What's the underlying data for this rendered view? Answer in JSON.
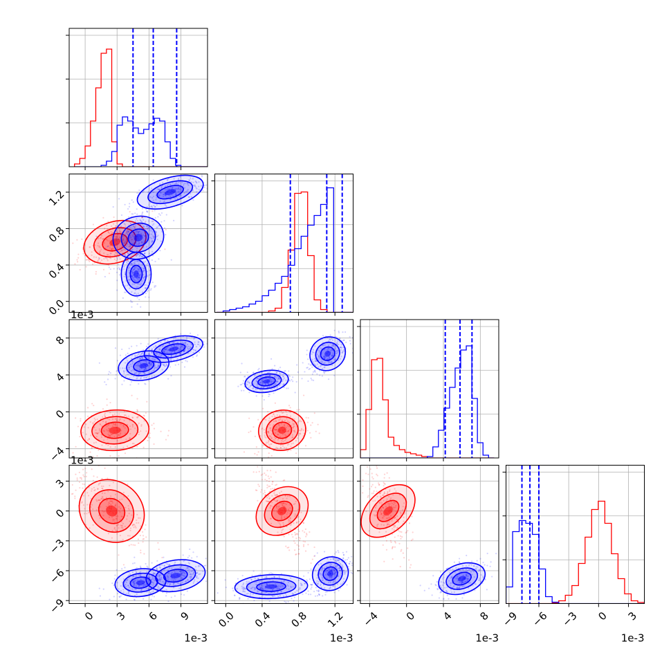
{
  "chart_data": {
    "type": "corner",
    "parameters": [
      {
        "exponent_label": "1e-3",
        "ticks": [
          0,
          3,
          6,
          9
        ],
        "tick_labels": [
          "0",
          "3",
          "6",
          "9"
        ],
        "range": [
          -1.5,
          11.5
        ]
      },
      {
        "exponent_label": "1e-3",
        "ticks": [
          0.0,
          0.4,
          0.8,
          1.2
        ],
        "tick_labels": [
          "0.0",
          "0.4",
          "0.8",
          "1.2"
        ],
        "range": [
          -0.12,
          1.4
        ]
      },
      {
        "exponent_label": "1e-3",
        "ticks": [
          -4,
          0,
          4,
          8
        ],
        "tick_labels": [
          "−4",
          "0",
          "4",
          "8"
        ],
        "range": [
          -5.0,
          10.0
        ]
      },
      {
        "exponent_label": "1e-3",
        "ticks": [
          -9,
          -6,
          -3,
          0,
          3
        ],
        "tick_labels": [
          "−9",
          "−6",
          "−3",
          "0",
          "3"
        ],
        "range": [
          -9.3,
          4.6
        ]
      }
    ],
    "series": [
      {
        "color": "#ff0000",
        "marginals": [
          {
            "edges": [
              -1.0,
              12.0
            ],
            "counts": [
              0.02,
              0.06,
              0.15,
              0.33,
              0.57,
              0.82,
              0.85,
              0.18,
              0.02,
              0,
              0,
              0,
              0,
              0,
              0,
              0,
              0,
              0,
              0,
              0,
              0,
              0,
              0,
              0,
              0,
              0
            ]
          },
          {
            "edges": [
              -0.1,
              1.4
            ],
            "counts": [
              0,
              0,
              0,
              0,
              0,
              0,
              0,
              0,
              0.01,
              0.03,
              0.18,
              0.45,
              0.86,
              0.87,
              0.41,
              0.09,
              0.02,
              0,
              0,
              0,
              0
            ]
          },
          {
            "edges": [
              -5.0,
              9.5
            ],
            "counts": [
              0.06,
              0.35,
              0.71,
              0.72,
              0.42,
              0.15,
              0.09,
              0.06,
              0.04,
              0.03,
              0.02,
              0.01,
              0,
              0,
              0,
              0,
              0,
              0,
              0,
              0,
              0,
              0,
              0,
              0
            ]
          },
          {
            "edges": [
              -9.3,
              4.6
            ],
            "counts": [
              0,
              0,
              0,
              0,
              0,
              0,
              0,
              0.004,
              0.02,
              0.06,
              0.13,
              0.29,
              0.48,
              0.68,
              0.74,
              0.58,
              0.36,
              0.18,
              0.07,
              0.02,
              0.008
            ]
          }
        ],
        "blobs": [
          {
            "xi": 0,
            "yi": 1,
            "cx": 2.8,
            "cy": 0.65,
            "sx": 1.5,
            "sy": 0.12,
            "rho": 0.45
          },
          {
            "xi": 0,
            "yi": 2,
            "cx": 2.8,
            "cy": -2.0,
            "sx": 1.6,
            "sy": 1.1,
            "rho": 0.1
          },
          {
            "xi": 1,
            "yi": 2,
            "cx": 0.62,
            "cy": -2.0,
            "sx": 0.13,
            "sy": 1.1,
            "rho": 0.2
          },
          {
            "xi": 0,
            "yi": 3,
            "cx": 2.5,
            "cy": 0.0,
            "sx": 1.6,
            "sy": 1.8,
            "rho": -0.72
          },
          {
            "xi": 1,
            "yi": 3,
            "cx": 0.62,
            "cy": 0.0,
            "sx": 0.12,
            "sy": 1.8,
            "rho": -0.8
          },
          {
            "xi": 2,
            "yi": 3,
            "cx": -2.0,
            "cy": 0.0,
            "sx": 1.1,
            "sy": 1.8,
            "rho": -0.6
          }
        ]
      },
      {
        "color": "#0000ff",
        "marginals": [
          {
            "edges": [
              -1.0,
              12.0
            ],
            "counts": [
              0,
              0,
              0,
              0,
              0,
              0.01,
              0.04,
              0.11,
              0.3,
              0.36,
              0.33,
              0.28,
              0.24,
              0.27,
              0.31,
              0.35,
              0.33,
              0.18,
              0.06,
              0.01,
              0,
              0,
              0,
              0,
              0,
              0
            ]
          },
          {
            "edges": [
              -0.1,
              1.4
            ],
            "counts": [
              0,
              0.01,
              0.02,
              0.03,
              0.04,
              0.06,
              0.08,
              0.12,
              0.16,
              0.21,
              0.26,
              0.34,
              0.46,
              0.55,
              0.63,
              0.7,
              0.78,
              0.9,
              0,
              0,
              0
            ]
          },
          {
            "edges": [
              -5.0,
              9.5
            ],
            "counts": [
              0,
              0,
              0,
              0,
              0,
              0,
              0,
              0,
              0,
              0,
              0,
              0,
              0.01,
              0.08,
              0.2,
              0.36,
              0.51,
              0.65,
              0.78,
              0.81,
              0.43,
              0.11,
              0.02,
              0
            ]
          },
          {
            "edges": [
              -9.3,
              4.6
            ],
            "counts": [
              0.12,
              0.52,
              0.6,
              0.58,
              0.5,
              0.25,
              0.05,
              0.01,
              0,
              0,
              0,
              0,
              0,
              0,
              0,
              0,
              0,
              0,
              0,
              0,
              0
            ]
          }
        ],
        "blobs": [
          {
            "xi": 0,
            "yi": 1,
            "cx": 5.0,
            "cy": 0.7,
            "sx": 1.2,
            "sy": 0.12,
            "rho": 0.3
          },
          {
            "xi": 0,
            "yi": 1,
            "cx": 8.0,
            "cy": 1.2,
            "sx": 1.6,
            "sy": 0.09,
            "rho": 0.6
          },
          {
            "xi": 0,
            "yi": 1,
            "cx": 4.8,
            "cy": 0.3,
            "sx": 0.7,
            "sy": 0.12,
            "rho": 0.0
          },
          {
            "xi": 0,
            "yi": 2,
            "cx": 5.5,
            "cy": 5.0,
            "sx": 1.2,
            "sy": 0.8,
            "rho": 0.3
          },
          {
            "xi": 0,
            "yi": 2,
            "cx": 8.3,
            "cy": 6.8,
            "sx": 1.4,
            "sy": 0.7,
            "rho": 0.5
          },
          {
            "xi": 1,
            "yi": 2,
            "cx": 0.45,
            "cy": 3.3,
            "sx": 0.12,
            "sy": 0.6,
            "rho": 0.3
          },
          {
            "xi": 1,
            "yi": 2,
            "cx": 1.12,
            "cy": 6.3,
            "sx": 0.1,
            "sy": 1.0,
            "rho": 0.6
          },
          {
            "xi": 0,
            "yi": 3,
            "cx": 5.2,
            "cy": -7.2,
            "sx": 1.2,
            "sy": 0.7,
            "rho": 0.2
          },
          {
            "xi": 0,
            "yi": 3,
            "cx": 8.5,
            "cy": -6.5,
            "sx": 1.4,
            "sy": 0.8,
            "rho": 0.3
          },
          {
            "xi": 1,
            "yi": 3,
            "cx": 0.5,
            "cy": -7.6,
            "sx": 0.2,
            "sy": 0.6,
            "rho": 0.1
          },
          {
            "xi": 1,
            "yi": 3,
            "cx": 1.15,
            "cy": -6.3,
            "sx": 0.1,
            "sy": 0.9,
            "rho": 0.5
          },
          {
            "xi": 2,
            "yi": 3,
            "cx": 6.0,
            "cy": -6.8,
            "sx": 1.3,
            "sy": 0.8,
            "rho": 0.5
          }
        ]
      }
    ],
    "quantile_lines": {
      "color": "#0000ff",
      "style": "dashed",
      "values": [
        [
          4.5,
          6.4,
          8.6
        ],
        [
          0.71,
          1.11,
          1.28
        ],
        [
          4.2,
          5.8,
          7.1
        ],
        [
          -7.7,
          -6.9,
          -6.0
        ]
      ]
    },
    "grid": true,
    "levels": [
      0.12,
      0.35,
      0.65
    ]
  }
}
